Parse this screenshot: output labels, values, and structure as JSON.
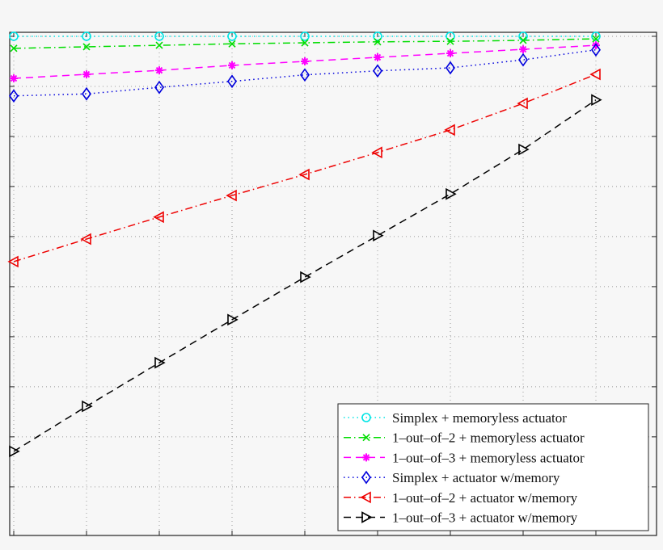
{
  "chart_data": {
    "type": "line",
    "title": "",
    "xlabel": "",
    "ylabel": "",
    "x": [
      1,
      2,
      3,
      4,
      5,
      6,
      7,
      8,
      9
    ],
    "xlim": [
      1,
      9.83
    ],
    "ylim": [
      0.03,
      10.08
    ],
    "grid": true,
    "tick_labels_visible": false,
    "legend_placement": "bottom-right",
    "series": [
      {
        "name": "Simplex + memoryless actuator",
        "color": "#00e5e5",
        "line": "dotted",
        "marker": "circle",
        "values": [
          10,
          10,
          10,
          10,
          10,
          10,
          10,
          10,
          10
        ]
      },
      {
        "name": "1–out–of–2  + memoryless actuator",
        "color": "#00dd00",
        "line": "dashdot",
        "marker": "x",
        "values": [
          9.76,
          9.79,
          9.82,
          9.85,
          9.87,
          9.89,
          9.9,
          9.92,
          9.95
        ]
      },
      {
        "name": "1–out–of–3 + memoryless actuator",
        "color": "#ff00ff",
        "line": "dashed",
        "marker": "star",
        "values": [
          9.16,
          9.24,
          9.32,
          9.42,
          9.5,
          9.58,
          9.66,
          9.74,
          9.82
        ]
      },
      {
        "name": "Simplex + actuator w/memory",
        "color": "#0000dd",
        "line": "dotted",
        "marker": "diamond",
        "values": [
          8.81,
          8.85,
          8.98,
          9.1,
          9.23,
          9.31,
          9.37,
          9.53,
          9.73
        ]
      },
      {
        "name": "1–out–of–2  + actuator w/memory",
        "color": "#ee0000",
        "line": "dashdot",
        "marker": "triangle-left",
        "values": [
          5.5,
          5.95,
          6.39,
          6.82,
          7.24,
          7.68,
          8.13,
          8.66,
          9.24
        ]
      },
      {
        "name": "1–out–of–3 + actuator w/memory",
        "color": "#000000",
        "line": "dashed",
        "marker": "triangle-right",
        "values": [
          1.71,
          2.61,
          3.48,
          4.34,
          5.19,
          6.02,
          6.85,
          7.74,
          8.73
        ]
      }
    ]
  }
}
